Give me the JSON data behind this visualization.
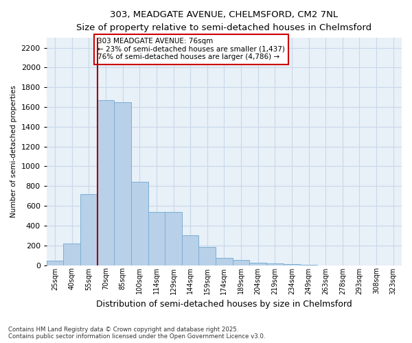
{
  "title": "303, MEADGATE AVENUE, CHELMSFORD, CM2 7NL",
  "subtitle": "Size of property relative to semi-detached houses in Chelmsford",
  "xlabel": "Distribution of semi-detached houses by size in Chelmsford",
  "ylabel": "Number of semi-detached properties",
  "categories": [
    "25sqm",
    "40sqm",
    "55sqm",
    "70sqm",
    "85sqm",
    "100sqm",
    "114sqm",
    "129sqm",
    "144sqm",
    "159sqm",
    "174sqm",
    "189sqm",
    "204sqm",
    "219sqm",
    "234sqm",
    "249sqm",
    "263sqm",
    "278sqm",
    "293sqm",
    "308sqm",
    "323sqm"
  ],
  "values": [
    45,
    220,
    720,
    1670,
    1645,
    840,
    540,
    540,
    300,
    185,
    70,
    50,
    25,
    15,
    10,
    5,
    0,
    0,
    0,
    0,
    0
  ],
  "bar_color": "#b8d0e8",
  "bar_edge_color": "#7bafd4",
  "grid_color": "#c8d8e8",
  "bg_color": "#e8f0f8",
  "vline_color": "#990000",
  "annotation_text": "303 MEADGATE AVENUE: 76sqm\n← 23% of semi-detached houses are smaller (1,437)\n76% of semi-detached houses are larger (4,786) →",
  "annotation_box_color": "#ffffff",
  "annotation_box_edge": "#cc0000",
  "footnote": "Contains HM Land Registry data © Crown copyright and database right 2025.\nContains public sector information licensed under the Open Government Licence v3.0.",
  "ylim": [
    0,
    2300
  ],
  "yticks": [
    0,
    200,
    400,
    600,
    800,
    1000,
    1200,
    1400,
    1600,
    1800,
    2000,
    2200
  ]
}
